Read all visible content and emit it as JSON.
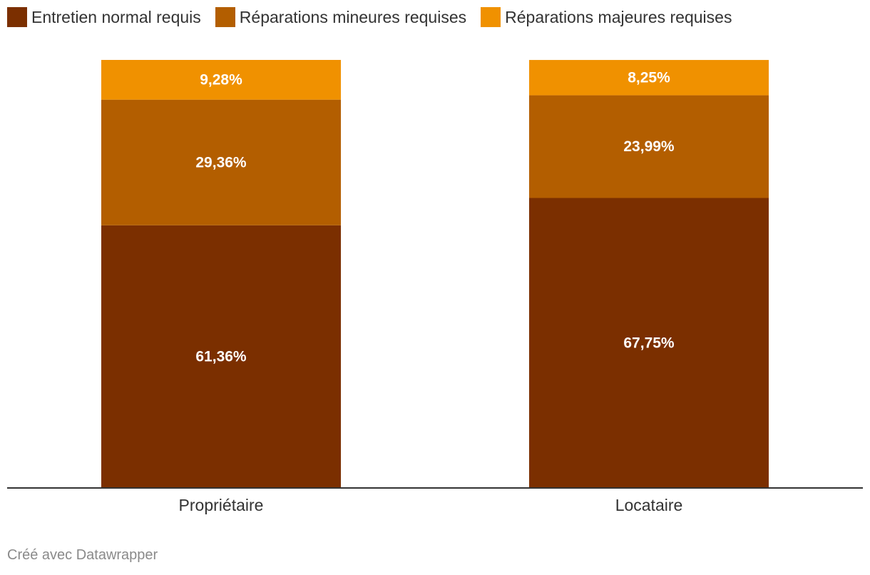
{
  "chart_data": {
    "type": "bar",
    "stacked": true,
    "title": "",
    "xlabel": "",
    "ylabel": "",
    "ylim": [
      0,
      100
    ],
    "grid": false,
    "legend_position": "top-left",
    "categories": [
      "Propriétaire",
      "Locataire"
    ],
    "series": [
      {
        "name": "Entretien normal requis",
        "color": "#7b2f00",
        "values": [
          61.36,
          67.75
        ],
        "labels": [
          "61,36%",
          "67,75%"
        ]
      },
      {
        "name": "Réparations mineures requises",
        "color": "#b35e00",
        "values": [
          29.36,
          23.99
        ],
        "labels": [
          "29,36%",
          "23,99%"
        ]
      },
      {
        "name": "Réparations majeures requises",
        "color": "#f09100",
        "values": [
          9.28,
          8.25
        ],
        "labels": [
          "9,28%",
          "8,25%"
        ]
      }
    ]
  },
  "footer": {
    "credit": "Créé avec Datawrapper"
  }
}
